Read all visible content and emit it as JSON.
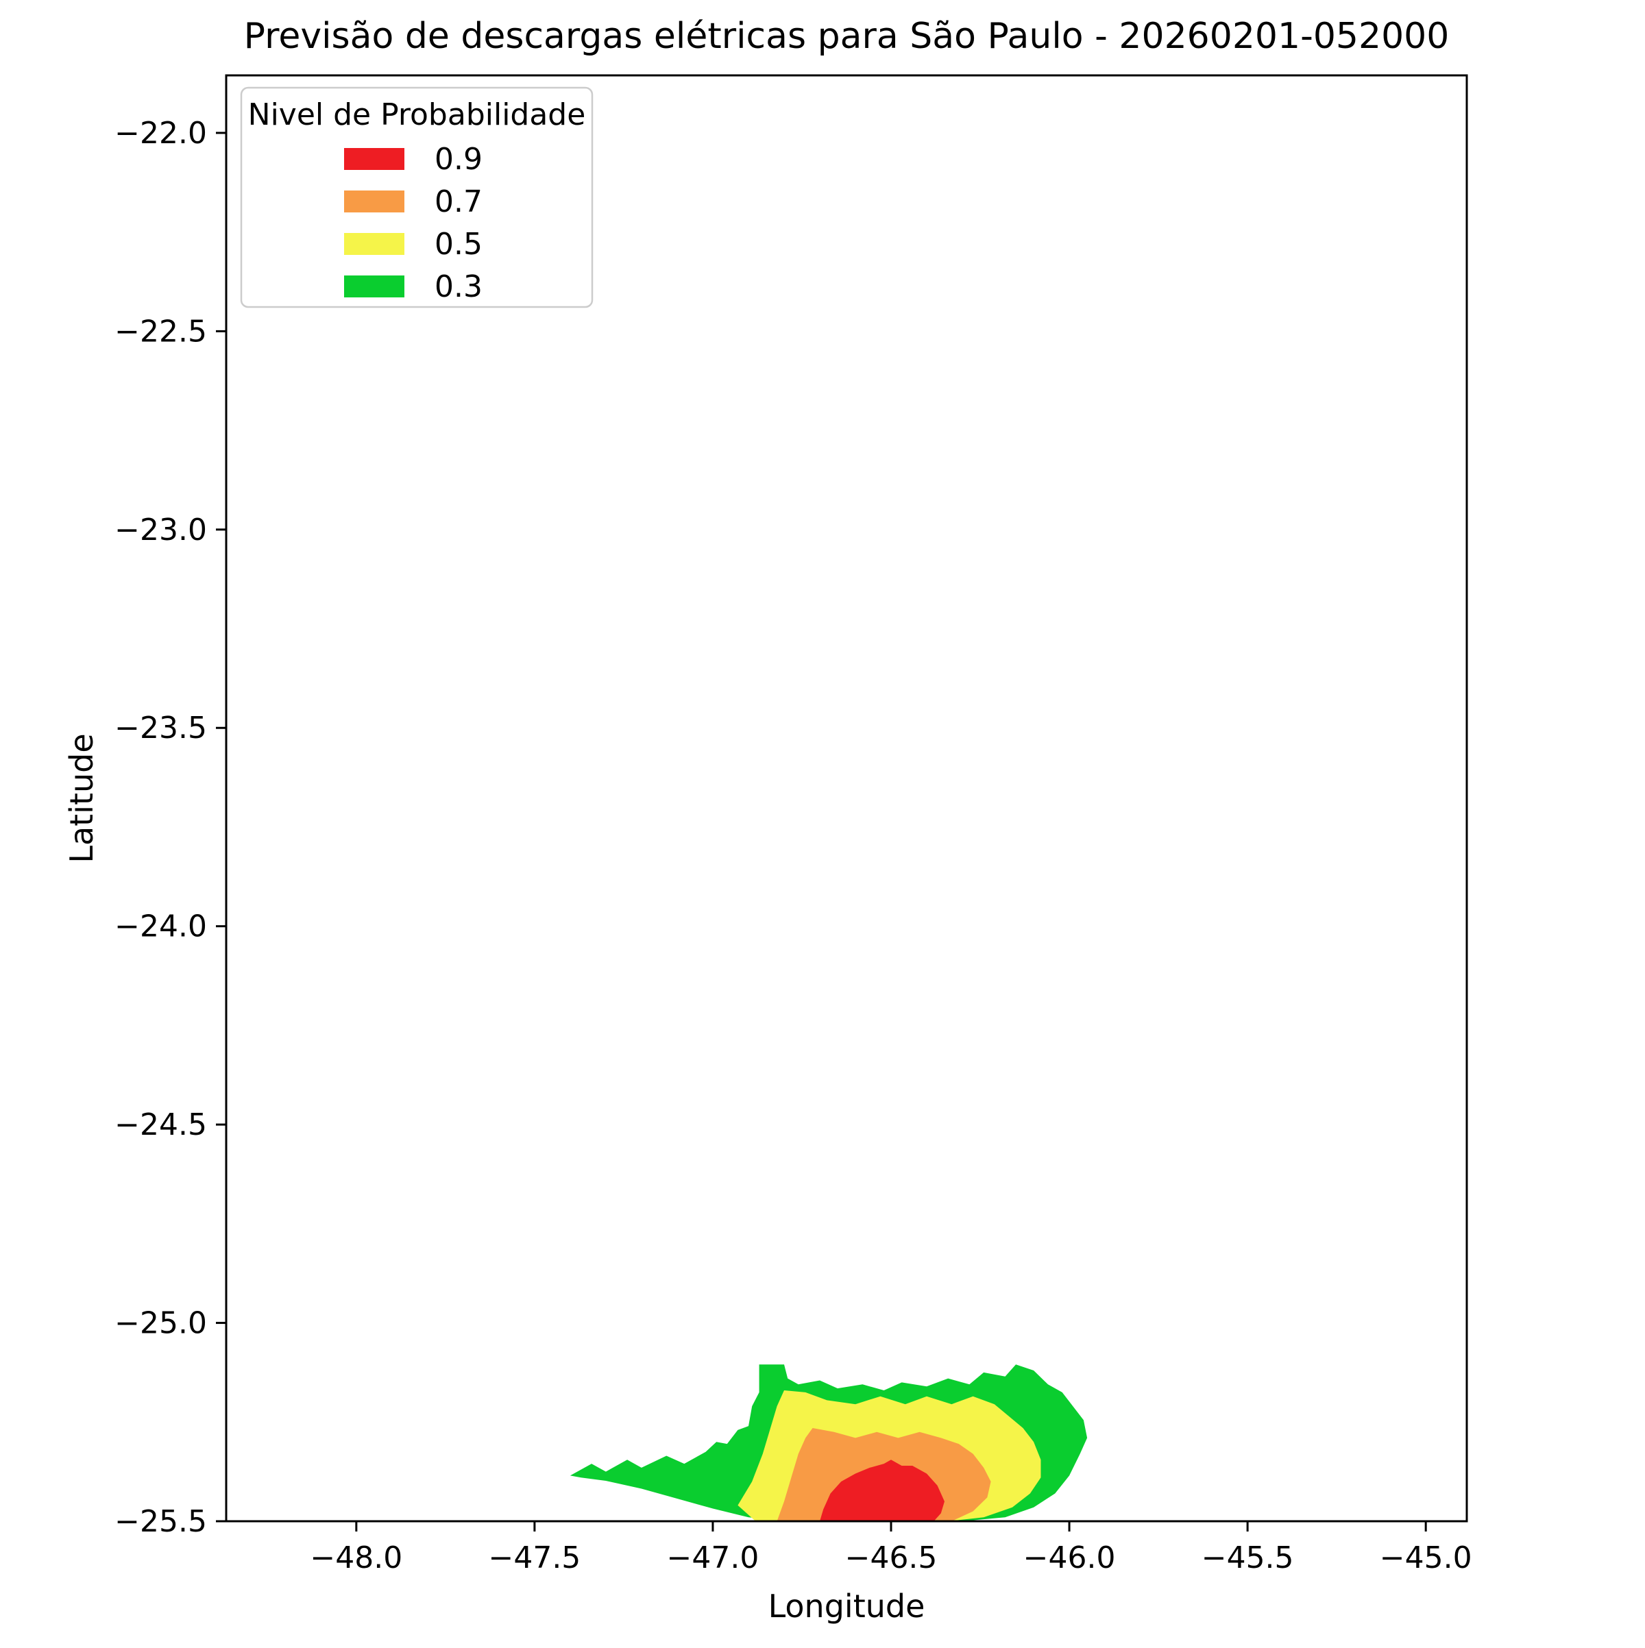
{
  "figure": {
    "title": "Previsão de descargas elétricas para São Paulo - 20260201-052000",
    "xlabel": "Longitude",
    "ylabel": "Latitude"
  },
  "chart_data": {
    "type": "filled_contour_map",
    "title": "Previsão de descargas elétricas para São Paulo - 20260201-052000",
    "xlabel": "Longitude",
    "ylabel": "Latitude",
    "grid": false,
    "xlim": [
      -48.365,
      -44.885
    ],
    "ylim": [
      -25.5,
      -21.855
    ],
    "xticks": [
      -48.0,
      -47.5,
      -47.0,
      -46.5,
      -46.0,
      -45.5,
      -45.0
    ],
    "xtick_labels": [
      "−48.0",
      "−47.5",
      "−47.0",
      "−46.5",
      "−46.0",
      "−45.5",
      "−45.0"
    ],
    "yticks": [
      -22.0,
      -22.5,
      -23.0,
      -23.5,
      -24.0,
      -24.5,
      -25.0,
      -25.5
    ],
    "ytick_labels": [
      "−22.0",
      "−22.5",
      "−23.0",
      "−23.5",
      "−24.0",
      "−24.5",
      "−25.0",
      "−25.5"
    ],
    "legend": {
      "title": "Nivel de Probabilidade",
      "position": "upper left",
      "entries": [
        {
          "label": "0.9",
          "color": "#EE1D23"
        },
        {
          "label": "0.7",
          "color": "#F89B45"
        },
        {
          "label": "0.5",
          "color": "#F5F449"
        },
        {
          "label": "0.3",
          "color": "#0ACD2F"
        }
      ]
    },
    "levels": [
      {
        "probability": 0.3,
        "color": "#0ACD2F",
        "polygon_lonlat": [
          [
            -47.4,
            -25.385
          ],
          [
            -47.34,
            -25.355
          ],
          [
            -47.3,
            -25.375
          ],
          [
            -47.24,
            -25.345
          ],
          [
            -47.2,
            -25.365
          ],
          [
            -47.13,
            -25.335
          ],
          [
            -47.08,
            -25.355
          ],
          [
            -47.02,
            -25.325
          ],
          [
            -46.99,
            -25.3
          ],
          [
            -46.96,
            -25.305
          ],
          [
            -46.93,
            -25.27
          ],
          [
            -46.9,
            -25.26
          ],
          [
            -46.89,
            -25.21
          ],
          [
            -46.87,
            -25.175
          ],
          [
            -46.87,
            -25.105
          ],
          [
            -46.8,
            -25.105
          ],
          [
            -46.79,
            -25.14
          ],
          [
            -46.76,
            -25.155
          ],
          [
            -46.7,
            -25.145
          ],
          [
            -46.65,
            -25.165
          ],
          [
            -46.58,
            -25.155
          ],
          [
            -46.52,
            -25.17
          ],
          [
            -46.47,
            -25.15
          ],
          [
            -46.4,
            -25.16
          ],
          [
            -46.34,
            -25.14
          ],
          [
            -46.28,
            -25.155
          ],
          [
            -46.24,
            -25.125
          ],
          [
            -46.18,
            -25.135
          ],
          [
            -46.15,
            -25.105
          ],
          [
            -46.1,
            -25.12
          ],
          [
            -46.06,
            -25.155
          ],
          [
            -46.02,
            -25.175
          ],
          [
            -45.99,
            -25.21
          ],
          [
            -45.96,
            -25.245
          ],
          [
            -45.95,
            -25.29
          ],
          [
            -45.97,
            -25.33
          ],
          [
            -46.0,
            -25.385
          ],
          [
            -46.04,
            -25.43
          ],
          [
            -46.1,
            -25.465
          ],
          [
            -46.18,
            -25.49
          ],
          [
            -46.3,
            -25.5
          ],
          [
            -46.8,
            -25.5
          ],
          [
            -46.9,
            -25.49
          ],
          [
            -47.0,
            -25.468
          ],
          [
            -47.1,
            -25.443
          ],
          [
            -47.2,
            -25.418
          ],
          [
            -47.3,
            -25.398
          ],
          [
            -47.37,
            -25.39
          ]
        ]
      },
      {
        "probability": 0.5,
        "color": "#F5F449",
        "polygon_lonlat": [
          [
            -46.93,
            -25.46
          ],
          [
            -46.89,
            -25.4
          ],
          [
            -46.86,
            -25.33
          ],
          [
            -46.84,
            -25.27
          ],
          [
            -46.82,
            -25.21
          ],
          [
            -46.8,
            -25.17
          ],
          [
            -46.74,
            -25.175
          ],
          [
            -46.68,
            -25.195
          ],
          [
            -46.6,
            -25.205
          ],
          [
            -46.53,
            -25.185
          ],
          [
            -46.46,
            -25.205
          ],
          [
            -46.4,
            -25.185
          ],
          [
            -46.33,
            -25.205
          ],
          [
            -46.27,
            -25.185
          ],
          [
            -46.21,
            -25.205
          ],
          [
            -46.17,
            -25.235
          ],
          [
            -46.13,
            -25.265
          ],
          [
            -46.1,
            -25.3
          ],
          [
            -46.08,
            -25.345
          ],
          [
            -46.08,
            -25.39
          ],
          [
            -46.11,
            -25.43
          ],
          [
            -46.16,
            -25.465
          ],
          [
            -46.24,
            -25.49
          ],
          [
            -46.34,
            -25.5
          ],
          [
            -46.88,
            -25.5
          ]
        ]
      },
      {
        "probability": 0.7,
        "color": "#F89B45",
        "polygon_lonlat": [
          [
            -46.82,
            -25.5
          ],
          [
            -46.8,
            -25.45
          ],
          [
            -46.78,
            -25.39
          ],
          [
            -46.76,
            -25.33
          ],
          [
            -46.74,
            -25.29
          ],
          [
            -46.72,
            -25.265
          ],
          [
            -46.66,
            -25.275
          ],
          [
            -46.6,
            -25.29
          ],
          [
            -46.54,
            -25.275
          ],
          [
            -46.48,
            -25.29
          ],
          [
            -46.42,
            -25.275
          ],
          [
            -46.36,
            -25.29
          ],
          [
            -46.31,
            -25.305
          ],
          [
            -46.27,
            -25.33
          ],
          [
            -46.24,
            -25.365
          ],
          [
            -46.22,
            -25.4
          ],
          [
            -46.23,
            -25.44
          ],
          [
            -46.27,
            -25.475
          ],
          [
            -46.33,
            -25.5
          ]
        ]
      },
      {
        "probability": 0.9,
        "color": "#EE1D23",
        "polygon_lonlat": [
          [
            -46.7,
            -25.5
          ],
          [
            -46.69,
            -25.47
          ],
          [
            -46.67,
            -25.43
          ],
          [
            -46.64,
            -25.4
          ],
          [
            -46.6,
            -25.38
          ],
          [
            -46.56,
            -25.365
          ],
          [
            -46.52,
            -25.355
          ],
          [
            -46.5,
            -25.345
          ],
          [
            -46.47,
            -25.36
          ],
          [
            -46.44,
            -25.36
          ],
          [
            -46.4,
            -25.38
          ],
          [
            -46.37,
            -25.41
          ],
          [
            -46.35,
            -25.45
          ],
          [
            -46.36,
            -25.48
          ],
          [
            -46.38,
            -25.5
          ]
        ]
      }
    ]
  }
}
